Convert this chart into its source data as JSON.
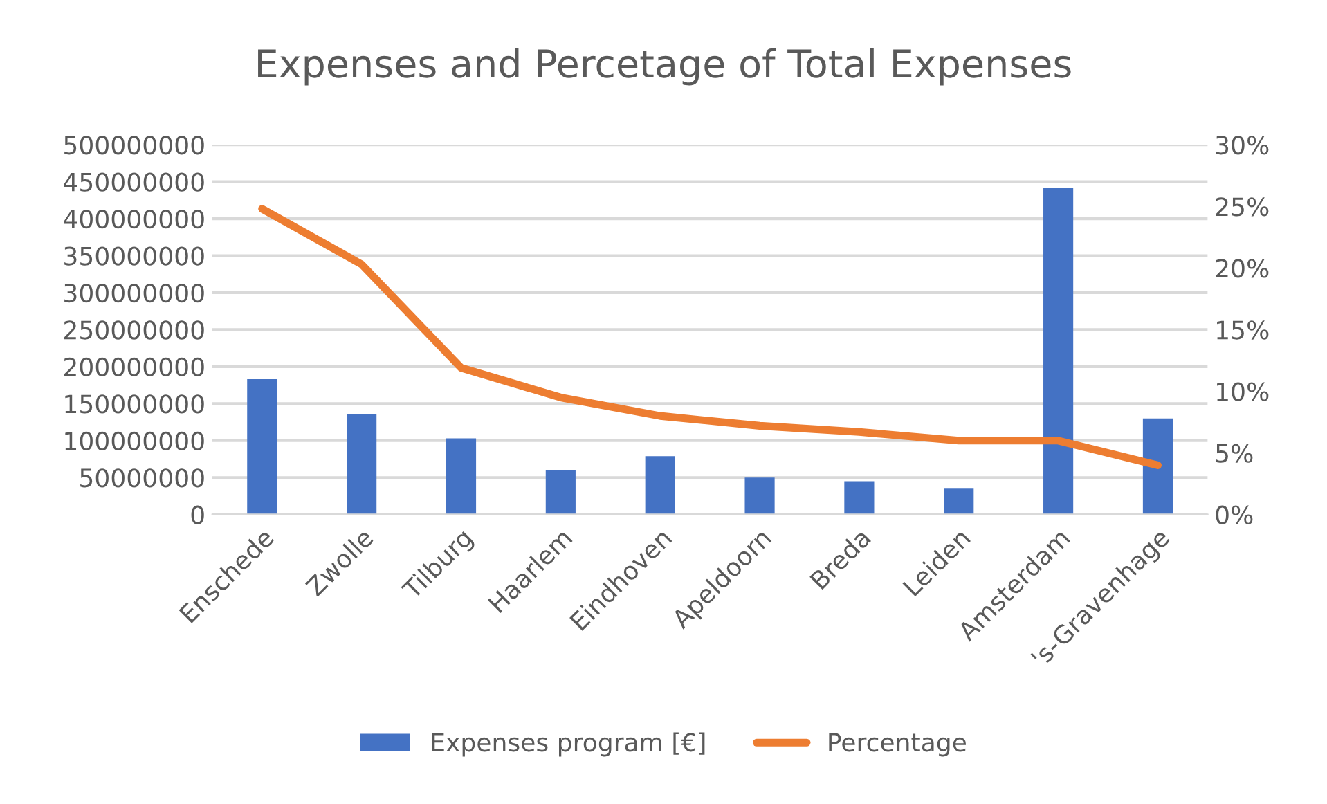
{
  "chart_data": {
    "type": "bar",
    "title": "Expenses and Percetage of Total Expenses",
    "categories": [
      "Enschede",
      "Zwolle",
      "Tilburg",
      "Haarlem",
      "Eindhoven",
      "Apeldoorn",
      "Breda",
      "Leiden",
      "Amsterdam",
      "'s-Gravenhage"
    ],
    "series": [
      {
        "name": "Expenses program [€]",
        "color": "#4472c4",
        "values": [
          183000000,
          136000000,
          103000000,
          60000000,
          79000000,
          50000000,
          45000000,
          35000000,
          442000000,
          130000000
        ]
      },
      {
        "name": "Percentage",
        "type": "line",
        "axis": "y2",
        "color": "#ed7d31",
        "values": [
          24.8,
          20.3,
          11.9,
          9.5,
          8.0,
          7.2,
          6.7,
          6.0,
          6.0,
          4.0
        ]
      }
    ],
    "ylim": [
      0,
      500000000
    ],
    "yticks": [
      0,
      50000000,
      100000000,
      150000000,
      200000000,
      250000000,
      300000000,
      350000000,
      400000000,
      450000000,
      500000000
    ],
    "y2lim": [
      0,
      30
    ],
    "y2ticks": [
      {
        "value": 0,
        "label": "0%"
      },
      {
        "value": 5,
        "label": "5%"
      },
      {
        "value": 10,
        "label": "10%"
      },
      {
        "value": 15,
        "label": "15%"
      },
      {
        "value": 20,
        "label": "20%"
      },
      {
        "value": 25,
        "label": "25%"
      },
      {
        "value": 30,
        "label": "30%"
      }
    ],
    "grid": "y",
    "legend": "bottom",
    "marker": "none",
    "line_style": "solid"
  }
}
